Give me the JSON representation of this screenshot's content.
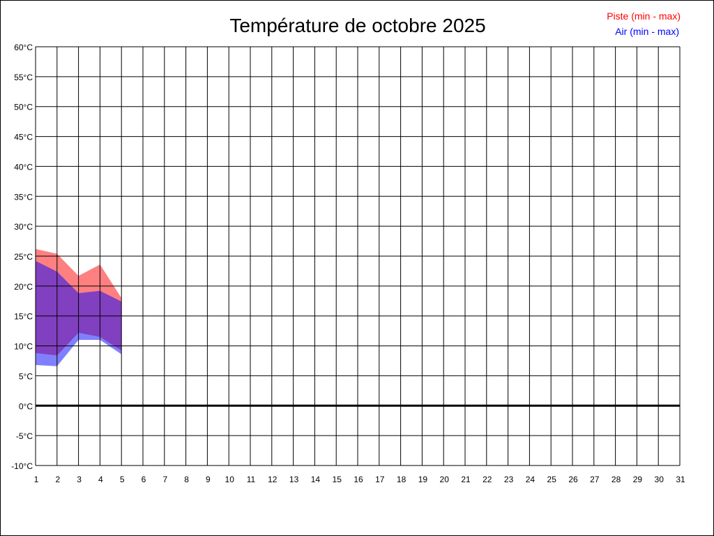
{
  "chart_data": {
    "type": "area",
    "title": "Température de octobre 2025",
    "xlabel": "",
    "ylabel": "",
    "x_ticks": [
      "1",
      "2",
      "3",
      "4",
      "5",
      "6",
      "7",
      "8",
      "9",
      "10",
      "11",
      "12",
      "13",
      "14",
      "15",
      "16",
      "17",
      "18",
      "19",
      "20",
      "21",
      "22",
      "23",
      "24",
      "25",
      "26",
      "27",
      "28",
      "29",
      "30",
      "31"
    ],
    "y_ticks": [
      "60°C",
      "55°C",
      "50°C",
      "45°C",
      "40°C",
      "35°C",
      "30°C",
      "25°C",
      "20°C",
      "15°C",
      "10°C",
      "5°C",
      "0°C",
      "-5°C",
      "-10°C"
    ],
    "xlim": [
      1,
      31
    ],
    "ylim": [
      -10,
      60
    ],
    "grid": true,
    "legend_placement": "top-right",
    "series": [
      {
        "name": "Piste (min - max)",
        "color": "#ff0000",
        "fill": "#ff8080",
        "x": [
          1,
          2,
          3,
          4,
          5
        ],
        "min": [
          8.8,
          8.4,
          12.2,
          11.5,
          9.2
        ],
        "max": [
          26.2,
          25.4,
          21.7,
          23.6,
          18.0
        ]
      },
      {
        "name": "Air (min - max)",
        "color": "#0000ff",
        "fill": "#8080ff",
        "x": [
          1,
          2,
          3,
          4,
          5
        ],
        "min": [
          6.8,
          6.6,
          11.0,
          11.0,
          8.6
        ],
        "max": [
          24.2,
          22.4,
          18.8,
          19.2,
          17.4
        ]
      }
    ],
    "overlap_color": "#8040c0"
  }
}
